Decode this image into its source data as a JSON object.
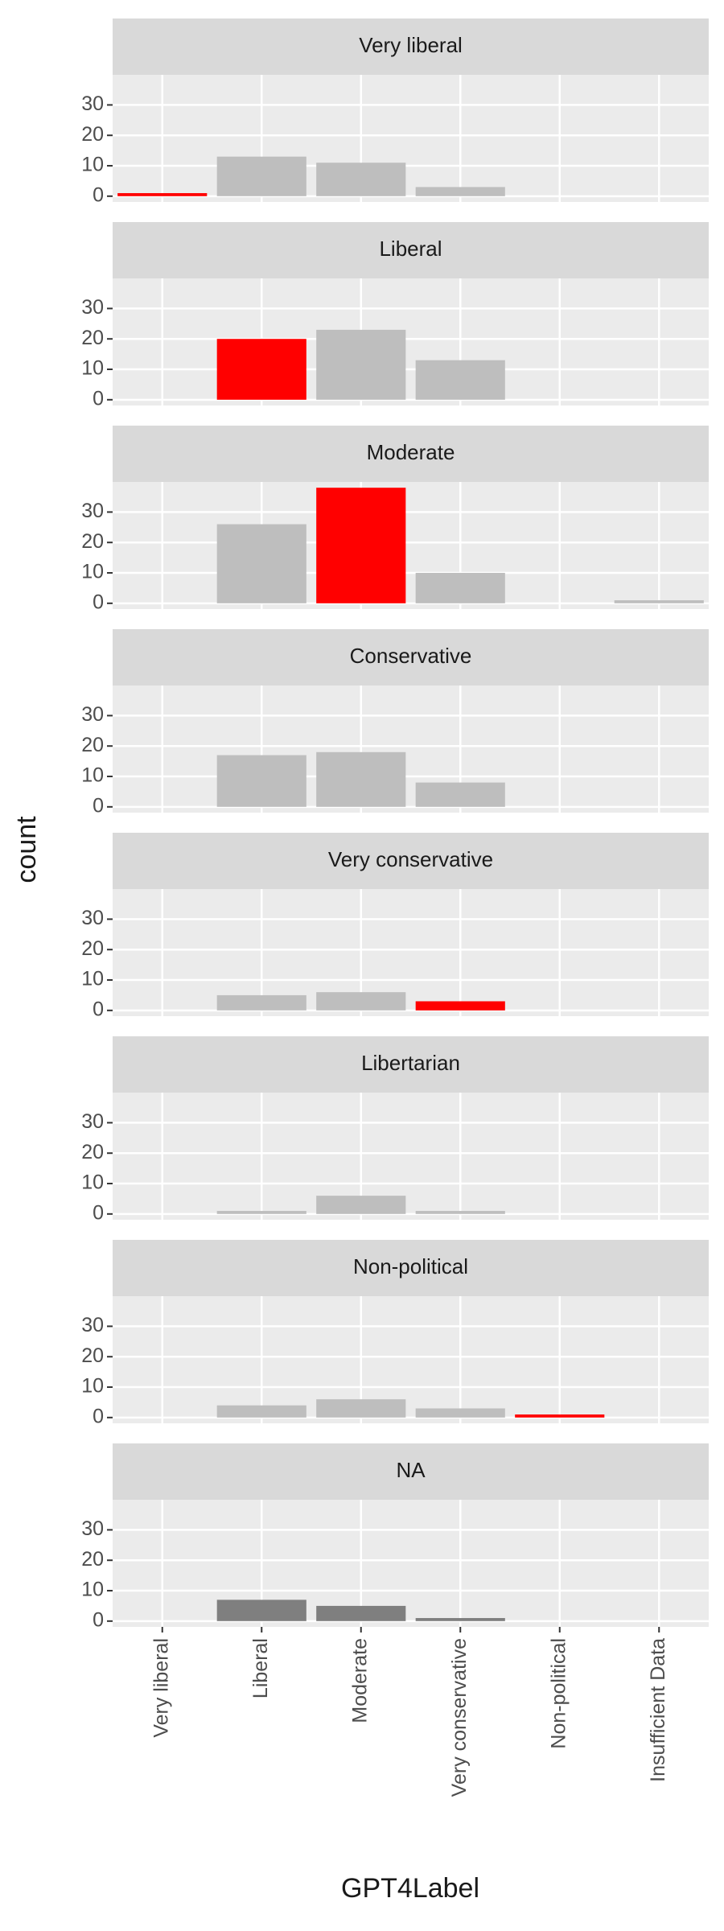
{
  "chart_data": {
    "type": "bar",
    "xlabel": "GPT4Label",
    "ylabel": "count",
    "categories": [
      "Very liberal",
      "Liberal",
      "Moderate",
      "Very conservative",
      "Non-political",
      "Insufficient Data"
    ],
    "ylim": [
      -1.9,
      39.9
    ],
    "yticks": [
      0,
      10,
      20,
      30
    ],
    "grid": true,
    "facets": [
      {
        "name": "Very liberal",
        "values": [
          1,
          13,
          11,
          3,
          null,
          null
        ],
        "colors": [
          "#ff0000",
          "#bebebe",
          "#bebebe",
          "#bebebe",
          null,
          null
        ]
      },
      {
        "name": "Liberal",
        "values": [
          null,
          20,
          23,
          13,
          null,
          null
        ],
        "colors": [
          null,
          "#ff0000",
          "#bebebe",
          "#bebebe",
          null,
          null
        ]
      },
      {
        "name": "Moderate",
        "values": [
          null,
          26,
          38,
          10,
          null,
          1
        ],
        "colors": [
          null,
          "#bebebe",
          "#ff0000",
          "#bebebe",
          null,
          "#bebebe"
        ]
      },
      {
        "name": "Conservative",
        "values": [
          null,
          17,
          18,
          8,
          null,
          null
        ],
        "colors": [
          null,
          "#bebebe",
          "#bebebe",
          "#bebebe",
          null,
          null
        ]
      },
      {
        "name": "Very conservative",
        "values": [
          null,
          5,
          6,
          3,
          null,
          null
        ],
        "colors": [
          null,
          "#bebebe",
          "#bebebe",
          "#ff0000",
          null,
          null
        ]
      },
      {
        "name": "Libertarian",
        "values": [
          null,
          1,
          6,
          1,
          null,
          null
        ],
        "colors": [
          null,
          "#bebebe",
          "#bebebe",
          "#bebebe",
          null,
          null
        ]
      },
      {
        "name": "Non-political",
        "values": [
          null,
          4,
          6,
          3,
          1,
          null
        ],
        "colors": [
          null,
          "#bebebe",
          "#bebebe",
          "#bebebe",
          "#ff0000",
          null
        ]
      },
      {
        "name": "NA",
        "values": [
          null,
          7,
          5,
          1,
          null,
          null
        ],
        "colors": [
          null,
          "#7f7f7f",
          "#7f7f7f",
          "#7f7f7f",
          null,
          null
        ]
      }
    ]
  }
}
